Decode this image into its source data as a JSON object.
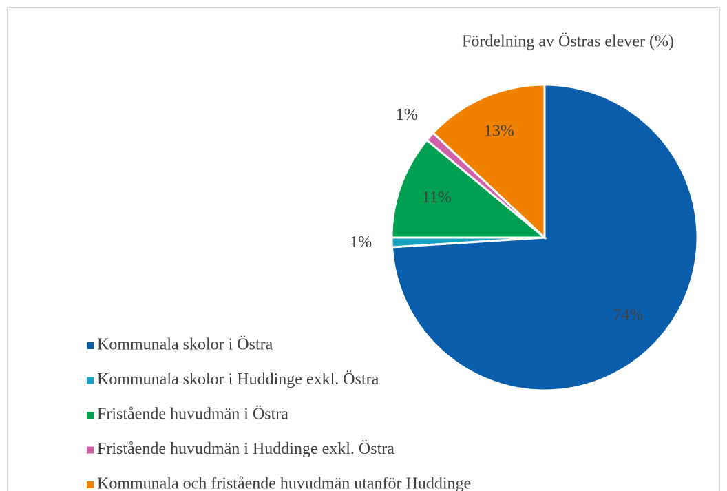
{
  "chart_data": {
    "type": "pie",
    "title": "Fördelning av Östras elever (%)",
    "categories": [
      "Kommunala skolor i Östra",
      "Kommunala skolor i Huddinge exkl. Östra",
      "Fristående huvudmän i Östra",
      "Fristående huvudmän i Huddinge exkl. Östra",
      "Kommunala och fristående huvudmän utanför Huddinge"
    ],
    "values": [
      74,
      1,
      11,
      1,
      13
    ],
    "value_labels": [
      "74%",
      "1%",
      "11%",
      "1%",
      "13%"
    ],
    "colors": [
      "#0a5dab",
      "#17a2c0",
      "#00a050",
      "#d060a8",
      "#f08000"
    ],
    "legend": "bottom-left"
  }
}
